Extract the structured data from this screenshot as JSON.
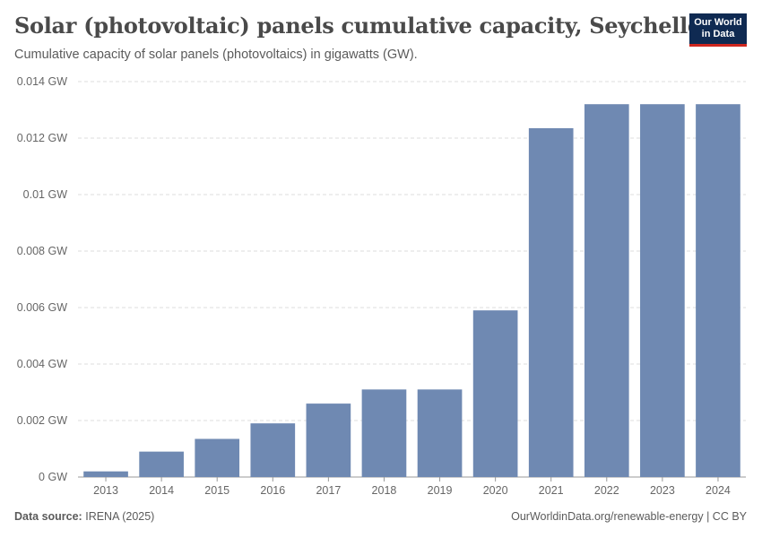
{
  "header": {
    "title": "Solar (photovoltaic) panels cumulative capacity, Seychelles",
    "subtitle": "Cumulative capacity of solar panels (photovoltaics) in gigawatts (GW).",
    "logo_line1": "Our World",
    "logo_line2": "in Data"
  },
  "footer": {
    "source_label": "Data source:",
    "source_value": "IRENA (2025)",
    "link": "OurWorldinData.org/renewable-energy",
    "separator": " | ",
    "license": "CC BY"
  },
  "colors": {
    "bar": "#6f89b2",
    "grid": "#dddddd",
    "axis_text": "#666666",
    "logo_bg": "#0f2a52",
    "logo_accent": "#ce261e"
  },
  "chart_data": {
    "type": "bar",
    "title": "Solar (photovoltaic) panels cumulative capacity, Seychelles",
    "xlabel": "",
    "ylabel": "",
    "unit": "GW",
    "categories": [
      "2013",
      "2014",
      "2015",
      "2016",
      "2017",
      "2018",
      "2019",
      "2020",
      "2021",
      "2022",
      "2023",
      "2024"
    ],
    "values": [
      0.0002,
      0.0009,
      0.00135,
      0.0019,
      0.0026,
      0.0031,
      0.0031,
      0.0059,
      0.01235,
      0.0132,
      0.0132,
      0.0132
    ],
    "ylim": [
      0,
      0.014
    ],
    "yticks": [
      0,
      0.002,
      0.004,
      0.006,
      0.008,
      0.01,
      0.012,
      0.014
    ],
    "ytick_labels": [
      "0 GW",
      "0.002 GW",
      "0.004 GW",
      "0.006 GW",
      "0.008 GW",
      "0.01 GW",
      "0.012 GW",
      "0.014 GW"
    ],
    "grid": true,
    "legend": "none"
  }
}
